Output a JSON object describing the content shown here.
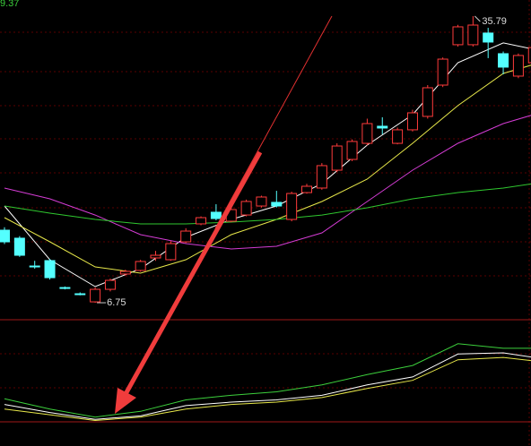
{
  "chart_data": [
    {
      "type": "candlestick",
      "top_label": "9.37",
      "high_label": "35.79",
      "low_label": "6.75",
      "up_color": "#ff3b3b",
      "down_color": "#54ffff",
      "ylim": [
        5.03,
        37.42
      ],
      "open": [
        14.1,
        13.29,
        10.47,
        11.02,
        8.29,
        7.66,
        6.84,
        8.11,
        9.66,
        10.02,
        11.29,
        11.11,
        12.92,
        14.74,
        15.92,
        15.01,
        15.64,
        16.55,
        16.92,
        15.19,
        17.91,
        18.37,
        20.18,
        21.27,
        22.9,
        24.63,
        22.9,
        24.27,
        25.63,
        28.8,
        32.89,
        32.89,
        34.07,
        31.98,
        29.71,
        31.07
      ],
      "high": [
        14.4,
        13.5,
        11.0,
        11.2,
        8.4,
        7.8,
        8.3,
        9.2,
        10.1,
        11.1,
        12.0,
        13.0,
        14.3,
        15.5,
        16.73,
        16.4,
        17.2,
        17.6,
        18.09,
        18.0,
        18.8,
        20.9,
        22.9,
        23.3,
        25.4,
        25.54,
        24.5,
        26.3,
        28.8,
        31.6,
        34.9,
        35.79,
        34.6,
        32.2,
        32.0,
        33.0
      ],
      "low": [
        12.7,
        11.4,
        10.2,
        9.1,
        8.1,
        7.5,
        6.75,
        7.9,
        9.5,
        9.9,
        11.0,
        11.0,
        12.8,
        14.6,
        15.1,
        14.9,
        15.5,
        16.4,
        16.4,
        15.0,
        17.8,
        18.2,
        20.0,
        21.1,
        22.7,
        23.81,
        22.8,
        24.1,
        25.4,
        28.6,
        32.7,
        32.7,
        31.53,
        29.89,
        29.5,
        30.9
      ],
      "close": [
        12.92,
        11.56,
        10.4,
        9.29,
        8.22,
        7.6,
        8.11,
        9.02,
        9.93,
        10.93,
        11.56,
        12.74,
        14.01,
        15.37,
        15.28,
        16.19,
        17.01,
        17.46,
        16.55,
        17.82,
        18.55,
        20.64,
        22.63,
        23.09,
        24.9,
        24.45,
        24.27,
        25.99,
        28.53,
        31.43,
        34.7,
        34.88,
        33.16,
        30.62,
        31.8,
        32.6
      ],
      "series": [
        {
          "color": "#ffffff",
          "x": [
            0,
            3,
            6,
            9,
            12,
            15,
            18,
            21,
            24,
            27,
            30,
            33,
            35
          ],
          "values": [
            16.55,
            11.11,
            8.39,
            10.2,
            13.38,
            15.19,
            16.55,
            18.82,
            22.72,
            25.81,
            31.07,
            33.07,
            32.43
          ]
        },
        {
          "color": "#e8e84a",
          "x": [
            0,
            3,
            6,
            9,
            12,
            15,
            18,
            21,
            24,
            27,
            30,
            33,
            35
          ],
          "values": [
            15.37,
            12.92,
            10.38,
            9.75,
            11.11,
            13.65,
            15.19,
            17.01,
            19.27,
            22.9,
            26.72,
            29.98,
            30.89
          ]
        },
        {
          "color": "#d43cd4",
          "x": [
            0,
            3,
            6,
            9,
            12,
            15,
            18,
            21,
            24,
            27,
            30,
            33,
            35
          ],
          "values": [
            18.37,
            17.28,
            15.64,
            13.65,
            12.74,
            12.2,
            12.47,
            13.83,
            17.01,
            20.18,
            22.9,
            24.9,
            25.81
          ]
        },
        {
          "color": "#2fc82f",
          "x": [
            0,
            3,
            6,
            9,
            12,
            15,
            18,
            21,
            24,
            27,
            30,
            33,
            35
          ],
          "values": [
            16.55,
            15.83,
            15.19,
            14.74,
            14.74,
            14.92,
            15.19,
            15.64,
            16.37,
            17.28,
            17.91,
            18.37,
            18.82
          ]
        }
      ]
    },
    {
      "type": "line",
      "ylim": [
        0,
        100
      ],
      "x": [
        0,
        3,
        6,
        9,
        12,
        15,
        18,
        21,
        24,
        27,
        30,
        33,
        35
      ],
      "series": [
        {
          "color": "#3cd03c",
          "values": [
            35,
            26,
            19,
            24,
            34,
            38,
            41,
            47,
            56,
            64,
            83,
            79,
            79
          ]
        },
        {
          "color": "#ffffff",
          "values": [
            30,
            23,
            17,
            20,
            29,
            32,
            34,
            38,
            47,
            54,
            74,
            75,
            71
          ]
        },
        {
          "color": "#e8e84a",
          "values": [
            26,
            21,
            16,
            19,
            26,
            30,
            32,
            36,
            44,
            51,
            69,
            71,
            68
          ]
        }
      ]
    }
  ]
}
